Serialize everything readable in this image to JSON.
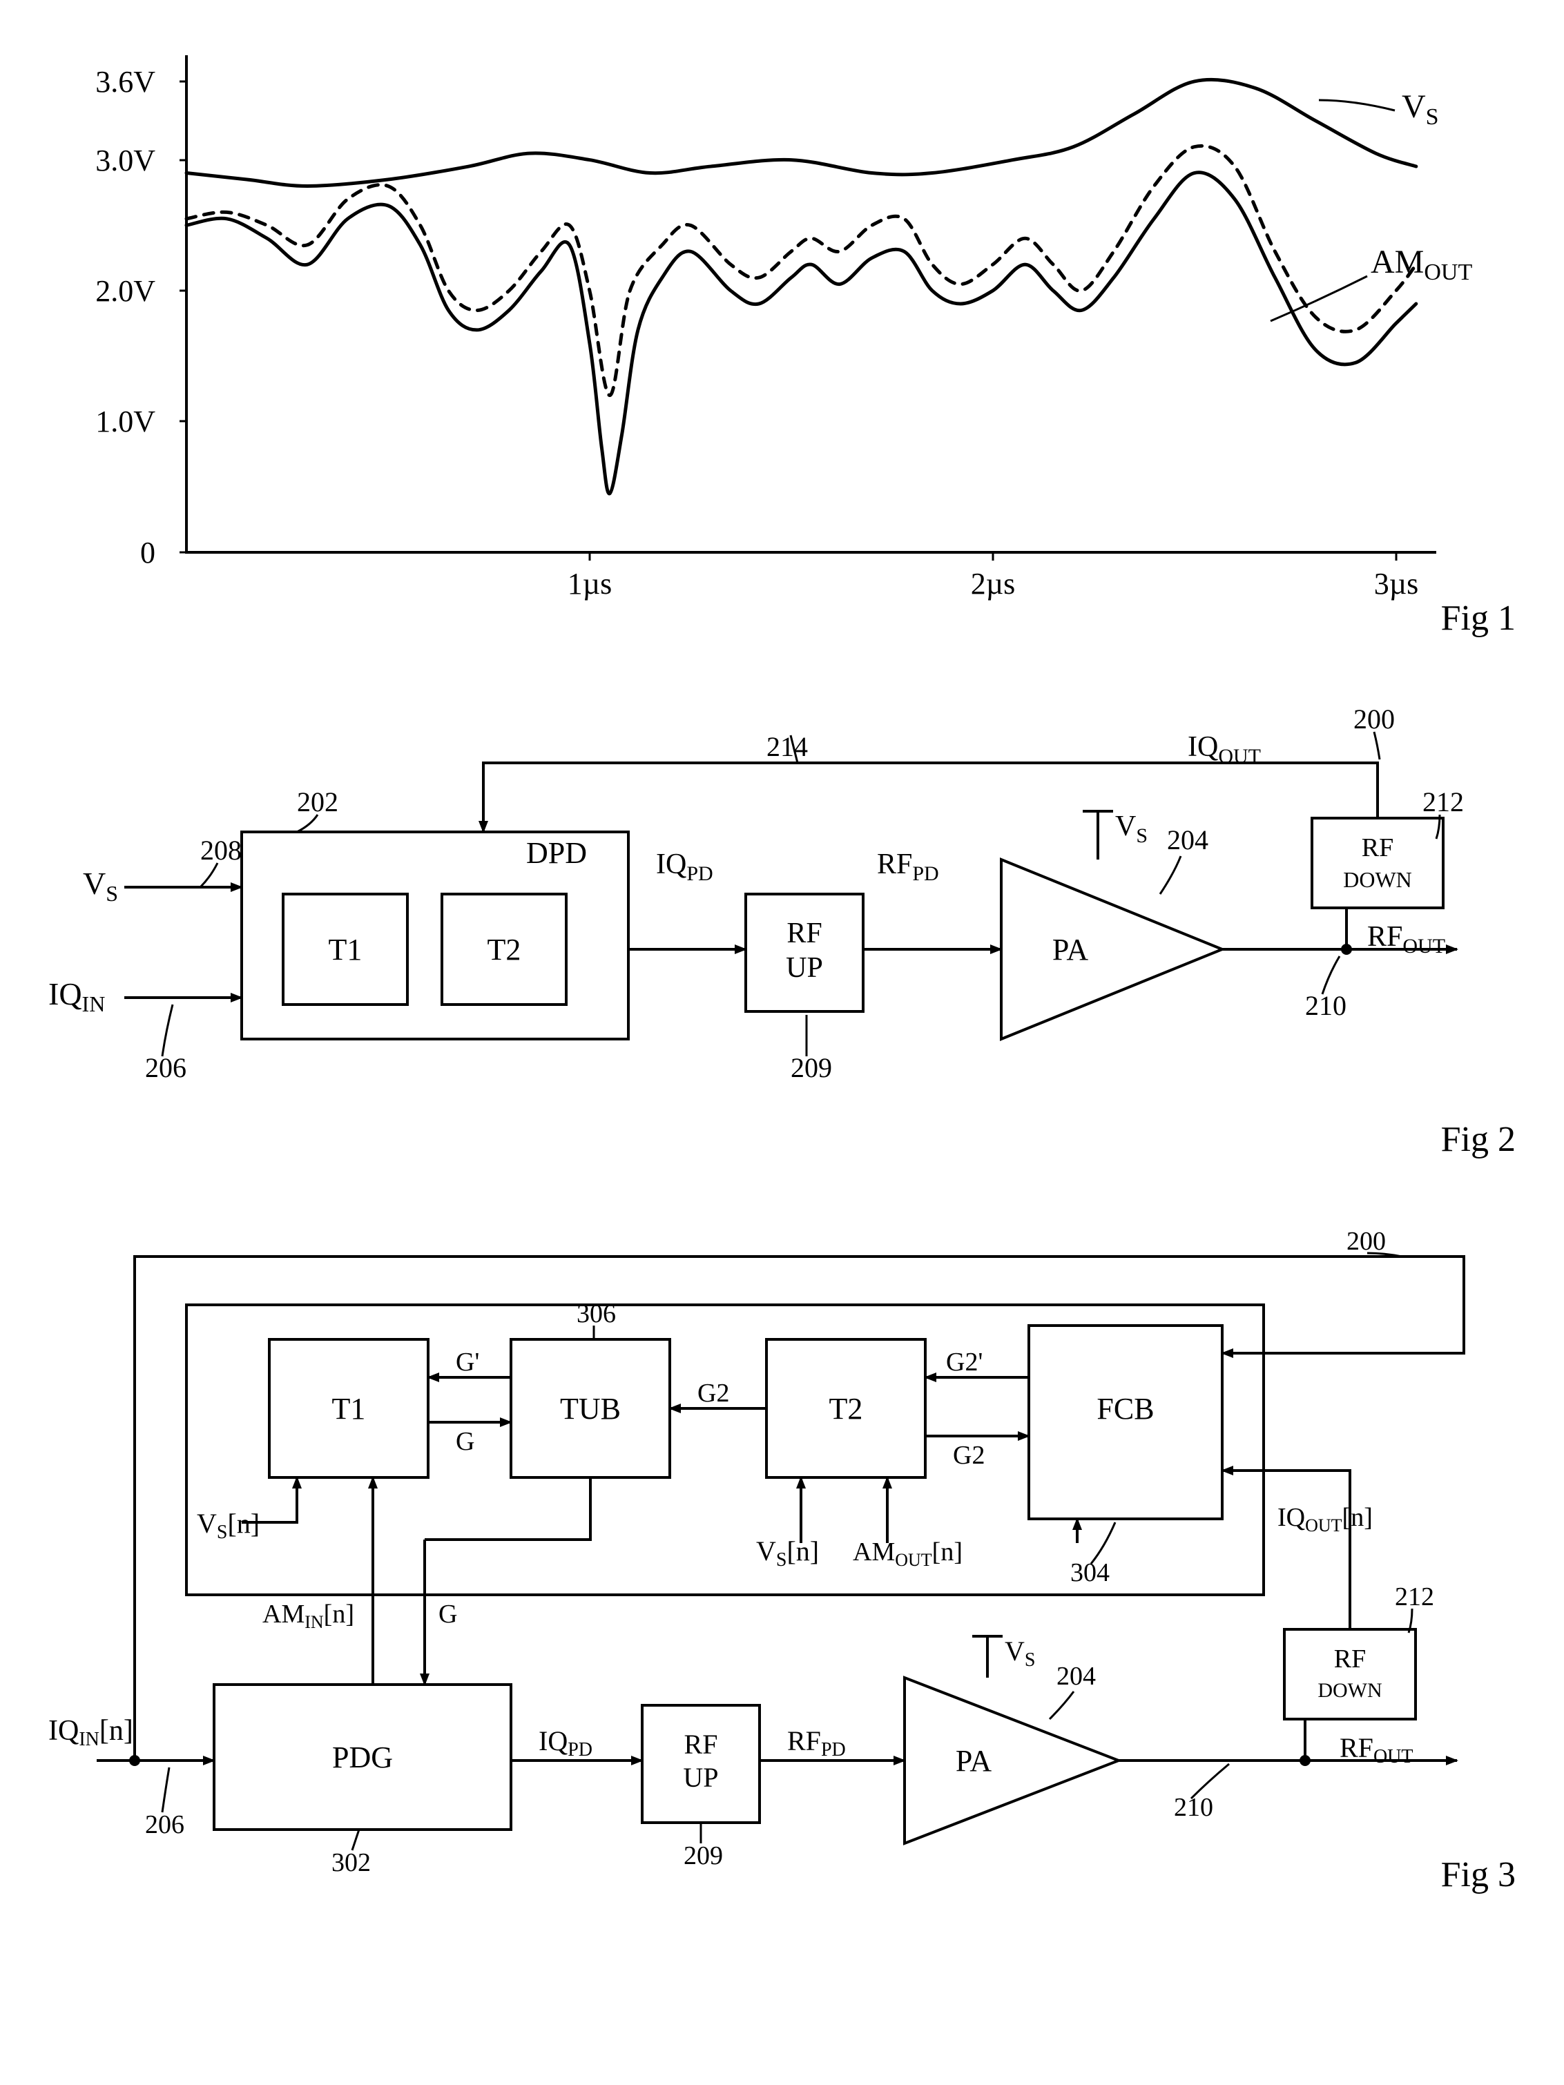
{
  "fig1": {
    "type": "line",
    "label": "Fig 1",
    "x_axis": {
      "min": 0,
      "max": 3.1,
      "ticks": [
        1,
        2,
        3
      ],
      "tick_labels": [
        "1µs",
        "2µs",
        "3µs"
      ],
      "label_fontsize": 40
    },
    "y_axis": {
      "min": 0,
      "max": 3.8,
      "ticks": [
        0,
        1.0,
        2.0,
        3.0,
        3.6
      ],
      "tick_labels": [
        "0",
        "1.0V",
        "2.0V",
        "3.0V",
        "3.6V"
      ],
      "label_fontsize": 40
    },
    "series": {
      "vs": {
        "label": "V_S",
        "color": "#000000",
        "width": 5,
        "dash": false,
        "points": [
          [
            0,
            2.9
          ],
          [
            0.15,
            2.85
          ],
          [
            0.3,
            2.8
          ],
          [
            0.5,
            2.85
          ],
          [
            0.7,
            2.95
          ],
          [
            0.85,
            3.05
          ],
          [
            1.0,
            3.0
          ],
          [
            1.15,
            2.9
          ],
          [
            1.3,
            2.95
          ],
          [
            1.5,
            3.0
          ],
          [
            1.7,
            2.9
          ],
          [
            1.85,
            2.9
          ],
          [
            2.05,
            3.0
          ],
          [
            2.2,
            3.1
          ],
          [
            2.35,
            3.35
          ],
          [
            2.5,
            3.6
          ],
          [
            2.65,
            3.55
          ],
          [
            2.8,
            3.3
          ],
          [
            2.95,
            3.05
          ],
          [
            3.05,
            2.95
          ]
        ]
      },
      "amout_dashed": {
        "label": "",
        "color": "#000000",
        "width": 5,
        "dash": true,
        "points": [
          [
            0,
            2.55
          ],
          [
            0.1,
            2.6
          ],
          [
            0.2,
            2.5
          ],
          [
            0.3,
            2.35
          ],
          [
            0.4,
            2.7
          ],
          [
            0.5,
            2.8
          ],
          [
            0.58,
            2.5
          ],
          [
            0.65,
            2.0
          ],
          [
            0.72,
            1.85
          ],
          [
            0.8,
            2.0
          ],
          [
            0.88,
            2.3
          ],
          [
            0.95,
            2.5
          ],
          [
            1.0,
            2.0
          ],
          [
            1.05,
            1.2
          ],
          [
            1.1,
            2.0
          ],
          [
            1.18,
            2.35
          ],
          [
            1.25,
            2.5
          ],
          [
            1.35,
            2.2
          ],
          [
            1.42,
            2.1
          ],
          [
            1.5,
            2.3
          ],
          [
            1.55,
            2.4
          ],
          [
            1.62,
            2.3
          ],
          [
            1.7,
            2.5
          ],
          [
            1.78,
            2.55
          ],
          [
            1.85,
            2.2
          ],
          [
            1.92,
            2.05
          ],
          [
            2.0,
            2.2
          ],
          [
            2.08,
            2.4
          ],
          [
            2.15,
            2.2
          ],
          [
            2.22,
            2.0
          ],
          [
            2.3,
            2.3
          ],
          [
            2.4,
            2.8
          ],
          [
            2.5,
            3.1
          ],
          [
            2.6,
            2.95
          ],
          [
            2.7,
            2.3
          ],
          [
            2.8,
            1.8
          ],
          [
            2.9,
            1.7
          ],
          [
            3.0,
            2.0
          ],
          [
            3.05,
            2.2
          ]
        ]
      },
      "amout": {
        "label": "AM_OUT",
        "color": "#000000",
        "width": 5,
        "dash": false,
        "points": [
          [
            0,
            2.5
          ],
          [
            0.1,
            2.55
          ],
          [
            0.2,
            2.4
          ],
          [
            0.3,
            2.2
          ],
          [
            0.4,
            2.55
          ],
          [
            0.5,
            2.65
          ],
          [
            0.58,
            2.35
          ],
          [
            0.65,
            1.85
          ],
          [
            0.72,
            1.7
          ],
          [
            0.8,
            1.85
          ],
          [
            0.88,
            2.15
          ],
          [
            0.95,
            2.35
          ],
          [
            1.0,
            1.6
          ],
          [
            1.03,
            0.8
          ],
          [
            1.05,
            0.45
          ],
          [
            1.08,
            0.9
          ],
          [
            1.12,
            1.7
          ],
          [
            1.18,
            2.1
          ],
          [
            1.25,
            2.3
          ],
          [
            1.35,
            2.0
          ],
          [
            1.42,
            1.9
          ],
          [
            1.5,
            2.1
          ],
          [
            1.55,
            2.2
          ],
          [
            1.62,
            2.05
          ],
          [
            1.7,
            2.25
          ],
          [
            1.78,
            2.3
          ],
          [
            1.85,
            2.0
          ],
          [
            1.92,
            1.9
          ],
          [
            2.0,
            2.0
          ],
          [
            2.08,
            2.2
          ],
          [
            2.15,
            2.0
          ],
          [
            2.22,
            1.85
          ],
          [
            2.3,
            2.1
          ],
          [
            2.4,
            2.55
          ],
          [
            2.5,
            2.9
          ],
          [
            2.6,
            2.7
          ],
          [
            2.7,
            2.1
          ],
          [
            2.8,
            1.55
          ],
          [
            2.9,
            1.45
          ],
          [
            3.0,
            1.75
          ],
          [
            3.05,
            1.9
          ]
        ]
      }
    },
    "annotations": {
      "vs_label": "V",
      "vs_sub": "S",
      "amout_label": "AM",
      "amout_sub": "OUT"
    },
    "plot_bg": "#ffffff",
    "axis_color": "#000000"
  },
  "fig2": {
    "type": "block-diagram",
    "label": "Fig 2",
    "signals": {
      "vs_in": {
        "text": "V",
        "sub": "S"
      },
      "iq_in": {
        "text": "IQ",
        "sub": "IN"
      },
      "iq_pd": {
        "text": "IQ",
        "sub": "PD"
      },
      "rf_pd": {
        "text": "RF",
        "sub": "PD"
      },
      "vs_top": {
        "text": "V",
        "sub": "S"
      },
      "rf_out": {
        "text": "RF",
        "sub": "OUT"
      },
      "iq_out": {
        "text": "IQ",
        "sub": "OUT"
      }
    },
    "blocks": {
      "dpd": {
        "label": "DPD",
        "ref": "202"
      },
      "t1": {
        "label": "T1"
      },
      "t2": {
        "label": "T2"
      },
      "rfup": {
        "label_l1": "RF",
        "label_l2": "UP",
        "ref": "209"
      },
      "pa": {
        "label": "PA",
        "ref": "204"
      },
      "rfdown": {
        "label_l1": "RF",
        "label_l2": "DOWN",
        "ref": "212"
      }
    },
    "refs": {
      "r200": "200",
      "r206": "206",
      "r208": "208",
      "r210": "210",
      "r214": "214"
    }
  },
  "fig3": {
    "type": "block-diagram",
    "label": "Fig 3",
    "signals": {
      "iq_in": {
        "text": "IQ",
        "sub": "IN",
        "idx": "[n]"
      },
      "vs_n_a": {
        "text": "V",
        "sub": "S",
        "idx": "[n]"
      },
      "vs_n_b": {
        "text": "V",
        "sub": "S",
        "idx": "[n]"
      },
      "am_in": {
        "text": "AM",
        "sub": "IN",
        "idx": "[n]"
      },
      "am_out": {
        "text": "AM",
        "sub": "OUT",
        "idx": "[n]"
      },
      "g": "G",
      "gp": "G'",
      "g2": "G2",
      "g2p": "G2'",
      "iq_pd": {
        "text": "IQ",
        "sub": "PD"
      },
      "rf_pd": {
        "text": "RF",
        "sub": "PD"
      },
      "vs_top": {
        "text": "V",
        "sub": "S"
      },
      "rf_out": {
        "text": "RF",
        "sub": "OUT"
      },
      "iq_out": {
        "text": "IQ",
        "sub": "OUT",
        "idx": "[n]"
      }
    },
    "blocks": {
      "pdg": {
        "label": "PDG",
        "ref": "302"
      },
      "t1": {
        "label": "T1"
      },
      "tub": {
        "label": "TUB",
        "ref": "306"
      },
      "t2": {
        "label": "T2"
      },
      "fcb": {
        "label": "FCB",
        "ref": "304"
      },
      "rfup": {
        "label_l1": "RF",
        "label_l2": "UP",
        "ref": "209"
      },
      "pa": {
        "label": "PA",
        "ref": "204"
      },
      "rfdown": {
        "label_l1": "RF",
        "label_l2": "DOWN",
        "ref": "212"
      }
    },
    "refs": {
      "r200": "200",
      "r206": "206",
      "r210": "210"
    }
  }
}
